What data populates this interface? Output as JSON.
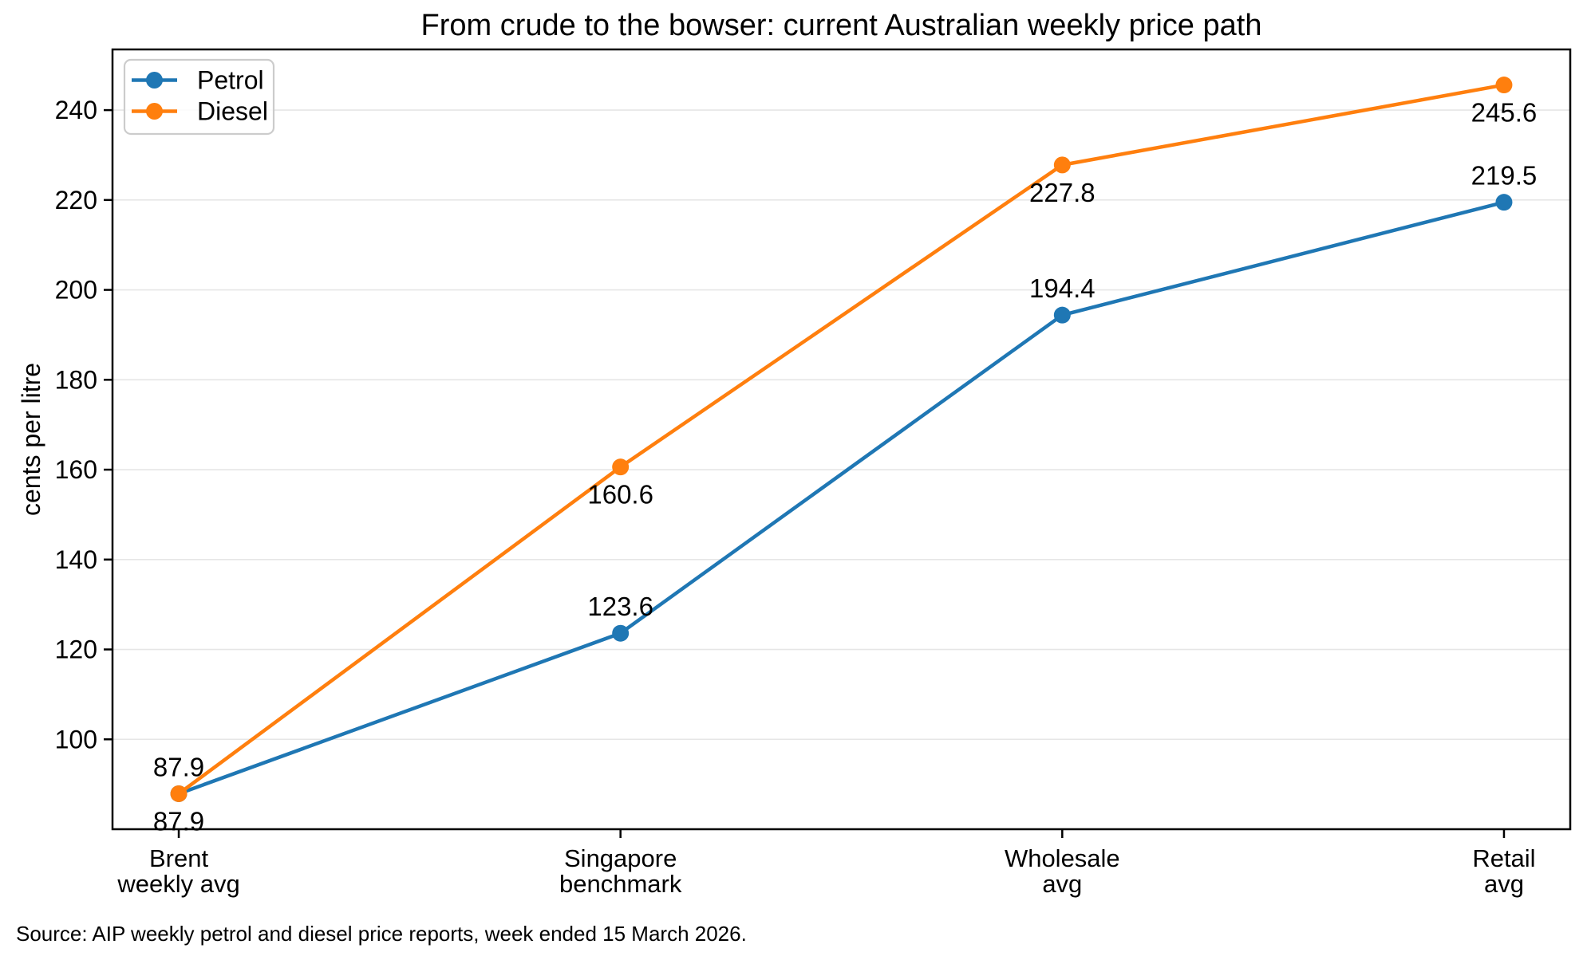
{
  "title": "From crude to the bowser: current Australian weekly price path",
  "source_note": "Source: AIP weekly petrol and diesel price reports, week ended 15 March 2026.",
  "ylabel": "cents per litre",
  "legend": {
    "items": [
      "Petrol",
      "Diesel"
    ],
    "position": "upper-left"
  },
  "colors": {
    "petrol": "#1f77b4",
    "diesel": "#ff7f0e",
    "grid": "#e6e6e6",
    "axis": "#000000",
    "legend_border": "#cccccc",
    "background": "#ffffff"
  },
  "chart_data": {
    "type": "line",
    "title": "From crude to the bowser: current Australian weekly price path",
    "xlabel": "",
    "ylabel": "cents per litre",
    "categories": [
      [
        "Brent",
        "weekly avg"
      ],
      [
        "Singapore",
        "benchmark"
      ],
      [
        "Wholesale",
        "avg"
      ],
      [
        "Retail",
        "avg"
      ]
    ],
    "series": [
      {
        "name": "Petrol",
        "color": "#1f77b4",
        "values": [
          87.9,
          123.6,
          194.4,
          219.5
        ],
        "data_labels": [
          "87.9",
          "123.6",
          "194.4",
          "219.5"
        ],
        "label_position": "above"
      },
      {
        "name": "Diesel",
        "color": "#ff7f0e",
        "values": [
          87.9,
          160.6,
          227.8,
          245.6
        ],
        "data_labels": [
          "87.9",
          "160.6",
          "227.8",
          "245.6"
        ],
        "label_position": "below"
      }
    ],
    "yticks": [
      100,
      120,
      140,
      160,
      180,
      200,
      220,
      240
    ],
    "ylim": [
      80.0,
      253.5
    ],
    "grid": "horizontal",
    "legend_position": "upper-left",
    "marker": "circle",
    "source": "Source: AIP weekly petrol and diesel price reports, week ended 15 March 2026."
  }
}
